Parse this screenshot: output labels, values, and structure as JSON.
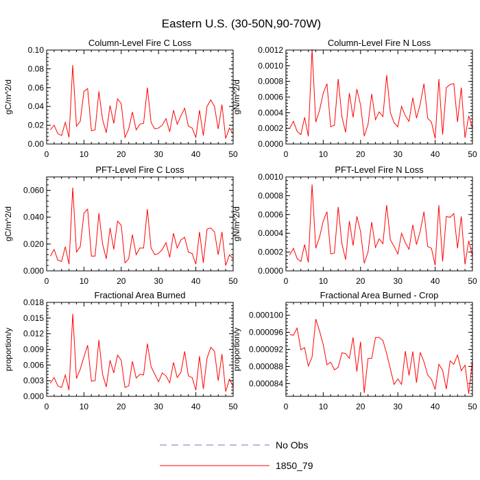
{
  "figure": {
    "title": "Eastern U.S. (30-50N,90-70W)"
  },
  "colors": {
    "series": "#ff0000",
    "no_obs": "#6f6fbf",
    "axis": "#000000"
  },
  "legend": {
    "entries": [
      {
        "label": "No Obs",
        "style": "dashed",
        "color": "#6f6fbf"
      },
      {
        "label": "1850_79",
        "style": "solid",
        "color": "#ff0000"
      }
    ]
  },
  "chart_data": [
    {
      "type": "line",
      "title": "Column-Level Fire C Loss",
      "ylabel": "gC/m^2/d",
      "xlim": [
        0,
        50
      ],
      "ylim": [
        0,
        0.1
      ],
      "xticks": [
        0,
        10,
        20,
        30,
        40,
        50
      ],
      "xtick_labels": [
        "0",
        "10",
        "20",
        "30",
        "40",
        "50"
      ],
      "yticks": [
        0,
        0.02,
        0.04,
        0.06,
        0.08,
        0.1
      ],
      "ytick_labels": [
        "0.00",
        "0.02",
        "0.04",
        "0.06",
        "0.08",
        "0.10"
      ],
      "series": [
        {
          "name": "1850_79",
          "x_start": 1,
          "values": [
            0.015,
            0.02,
            0.011,
            0.009,
            0.023,
            0.007,
            0.084,
            0.019,
            0.024,
            0.056,
            0.059,
            0.014,
            0.015,
            0.056,
            0.026,
            0.012,
            0.041,
            0.022,
            0.048,
            0.043,
            0.007,
            0.016,
            0.034,
            0.015,
            0.021,
            0.022,
            0.06,
            0.023,
            0.016,
            0.017,
            0.02,
            0.027,
            0.013,
            0.036,
            0.021,
            0.03,
            0.038,
            0.019,
            0.017,
            0.007,
            0.036,
            0.009,
            0.04,
            0.047,
            0.04,
            0.016,
            0.042,
            0.006,
            0.017,
            0.011
          ]
        }
      ]
    },
    {
      "type": "line",
      "title": "Column-Level Fire N Loss",
      "ylabel": "gN/m^2/d",
      "xlim": [
        0,
        50
      ],
      "ylim": [
        0,
        0.0012
      ],
      "xticks": [
        0,
        10,
        20,
        30,
        40,
        50
      ],
      "xtick_labels": [
        "0",
        "10",
        "20",
        "30",
        "40",
        "50"
      ],
      "yticks": [
        0,
        0.0002,
        0.0004,
        0.0006,
        0.0008,
        0.001,
        0.0012
      ],
      "ytick_labels": [
        "0.0000",
        "0.0002",
        "0.0004",
        "0.0006",
        "0.0008",
        "0.0010",
        "0.0012"
      ],
      "series": [
        {
          "name": "1850_79",
          "x_start": 1,
          "values": [
            0.0002,
            0.00029,
            0.00016,
            0.00012,
            0.00034,
            0.0001,
            0.00121,
            0.00028,
            0.00043,
            0.00065,
            0.00077,
            0.00022,
            0.00024,
            0.00083,
            0.00035,
            0.00015,
            0.00065,
            0.00034,
            0.0007,
            0.0005,
            0.0001,
            0.00025,
            0.00064,
            0.00031,
            0.00041,
            0.00035,
            0.00088,
            0.0004,
            0.00027,
            0.00022,
            0.00048,
            0.00036,
            0.00029,
            0.00059,
            0.00033,
            0.00051,
            0.00077,
            0.00033,
            0.00028,
            7e-05,
            0.00083,
            0.00012,
            0.00072,
            0.00076,
            0.00077,
            0.00028,
            0.00072,
            8e-05,
            0.00036,
            0.0002
          ]
        }
      ]
    },
    {
      "type": "line",
      "title": "PFT-Level Fire C Loss",
      "ylabel": "gC/m^2/d",
      "xlim": [
        0,
        50
      ],
      "ylim": [
        0,
        0.07
      ],
      "xticks": [
        0,
        10,
        20,
        30,
        40,
        50
      ],
      "xtick_labels": [
        "0",
        "10",
        "20",
        "30",
        "40",
        "50"
      ],
      "yticks": [
        0,
        0.02,
        0.04,
        0.06
      ],
      "ytick_labels": [
        "0.000",
        "0.020",
        "0.040",
        "0.060"
      ],
      "series": [
        {
          "name": "1850_79",
          "x_start": 1,
          "values": [
            0.011,
            0.016,
            0.008,
            0.007,
            0.018,
            0.005,
            0.062,
            0.014,
            0.018,
            0.043,
            0.046,
            0.011,
            0.011,
            0.043,
            0.02,
            0.009,
            0.032,
            0.016,
            0.037,
            0.034,
            0.006,
            0.009,
            0.027,
            0.012,
            0.017,
            0.017,
            0.046,
            0.017,
            0.012,
            0.013,
            0.016,
            0.021,
            0.01,
            0.028,
            0.017,
            0.023,
            0.025,
            0.014,
            0.013,
            0.005,
            0.029,
            0.006,
            0.031,
            0.032,
            0.029,
            0.012,
            0.029,
            0.004,
            0.012,
            0.009
          ]
        }
      ]
    },
    {
      "type": "line",
      "title": "PFT-Level Fire N Loss",
      "ylabel": "gN/m^2/d",
      "xlim": [
        0,
        50
      ],
      "ylim": [
        0,
        0.001
      ],
      "xticks": [
        0,
        10,
        20,
        30,
        40,
        50
      ],
      "xtick_labels": [
        "0",
        "10",
        "20",
        "30",
        "40",
        "50"
      ],
      "yticks": [
        0,
        0.0002,
        0.0004,
        0.0006,
        0.0008,
        0.001
      ],
      "ytick_labels": [
        "0.0000",
        "0.0002",
        "0.0004",
        "0.0006",
        "0.0008",
        "0.0010"
      ],
      "series": [
        {
          "name": "1850_79",
          "x_start": 1,
          "values": [
            0.00017,
            0.00024,
            0.00013,
            0.0001,
            0.00028,
            9e-05,
            0.00092,
            0.00024,
            0.00036,
            0.00053,
            0.00063,
            0.00018,
            0.00019,
            0.00068,
            0.00029,
            0.00012,
            0.00053,
            0.00027,
            0.00058,
            0.00042,
            8e-05,
            0.0002,
            0.00052,
            0.00025,
            0.00034,
            0.00029,
            0.0007,
            0.00033,
            0.00026,
            0.00018,
            0.0004,
            0.0003,
            0.00023,
            0.00049,
            0.00028,
            0.00042,
            0.00063,
            0.00026,
            0.00024,
            6e-05,
            0.0007,
            0.0001,
            0.00058,
            0.00057,
            0.00061,
            0.00024,
            0.00058,
            7e-05,
            0.00032,
            0.00016
          ]
        }
      ]
    },
    {
      "type": "line",
      "title": "Fractional Area Burned",
      "ylabel": "proportion/y",
      "xlim": [
        0,
        50
      ],
      "ylim": [
        0,
        0.018
      ],
      "xticks": [
        0,
        10,
        20,
        30,
        40,
        50
      ],
      "xtick_labels": [
        "0",
        "10",
        "20",
        "30",
        "40",
        "50"
      ],
      "yticks": [
        0,
        0.003,
        0.006,
        0.009,
        0.012,
        0.015,
        0.018
      ],
      "ytick_labels": [
        "0.000",
        "0.003",
        "0.006",
        "0.009",
        "0.012",
        "0.015",
        "0.018"
      ],
      "series": [
        {
          "name": "1850_79",
          "x_start": 1,
          "values": [
            0.0025,
            0.0036,
            0.002,
            0.0017,
            0.0041,
            0.0012,
            0.0158,
            0.0034,
            0.0052,
            0.0076,
            0.0098,
            0.0029,
            0.003,
            0.0108,
            0.0042,
            0.0018,
            0.0069,
            0.0045,
            0.0079,
            0.0069,
            0.0017,
            0.002,
            0.0067,
            0.0035,
            0.0042,
            0.0041,
            0.0101,
            0.0057,
            0.0042,
            0.0028,
            0.0045,
            0.0039,
            0.0026,
            0.0065,
            0.0036,
            0.0046,
            0.0086,
            0.0039,
            0.0036,
            0.0012,
            0.0077,
            0.0014,
            0.0073,
            0.0094,
            0.0086,
            0.003,
            0.0081,
            0.0009,
            0.0033,
            0.0019
          ]
        }
      ]
    },
    {
      "type": "line",
      "title": "Fractional Area Burned - Crop",
      "ylabel": "proportion/y",
      "xlim": [
        0,
        50
      ],
      "ylim": [
        8.1e-05,
        0.000103
      ],
      "xticks": [
        0,
        10,
        20,
        30,
        40,
        50
      ],
      "xtick_labels": [
        "0",
        "10",
        "20",
        "30",
        "40",
        "50"
      ],
      "yticks": [
        8.4e-05,
        8.8e-05,
        9.2e-05,
        9.6e-05,
        0.0001
      ],
      "ytick_labels": [
        "0.000084",
        "0.000088",
        "0.000092",
        "0.000096",
        "0.000100"
      ],
      "series": [
        {
          "name": "1850_79",
          "x_start": 1,
          "values": [
            9.55e-05,
            9.53e-05,
            9.7e-05,
            9.19e-05,
            9.24e-05,
            8.81e-05,
            9.02e-05,
            9.91e-05,
            9.63e-05,
            9.31e-05,
            8.84e-05,
            8.9e-05,
            8.72e-05,
            8.78e-05,
            9.12e-05,
            9.1e-05,
            8.99e-05,
            9.48e-05,
            8.68e-05,
            9.38e-05,
            8.18e-05,
            8.99e-05,
            8.99e-05,
            9.48e-05,
            9.48e-05,
            9.41e-05,
            9.1e-05,
            8.74e-05,
            8.38e-05,
            8.51e-05,
            8.38e-05,
            9.16e-05,
            8.59e-05,
            9.15e-05,
            8.42e-05,
            9.13e-05,
            8.91e-05,
            8.6e-05,
            8.5e-05,
            8.26e-05,
            8.85e-05,
            8.71e-05,
            8.27e-05,
            8.93e-05,
            8.85e-05,
            9.07e-05,
            8.7e-05,
            8.83e-05,
            8.16e-05,
            8.95e-05
          ]
        }
      ]
    }
  ]
}
